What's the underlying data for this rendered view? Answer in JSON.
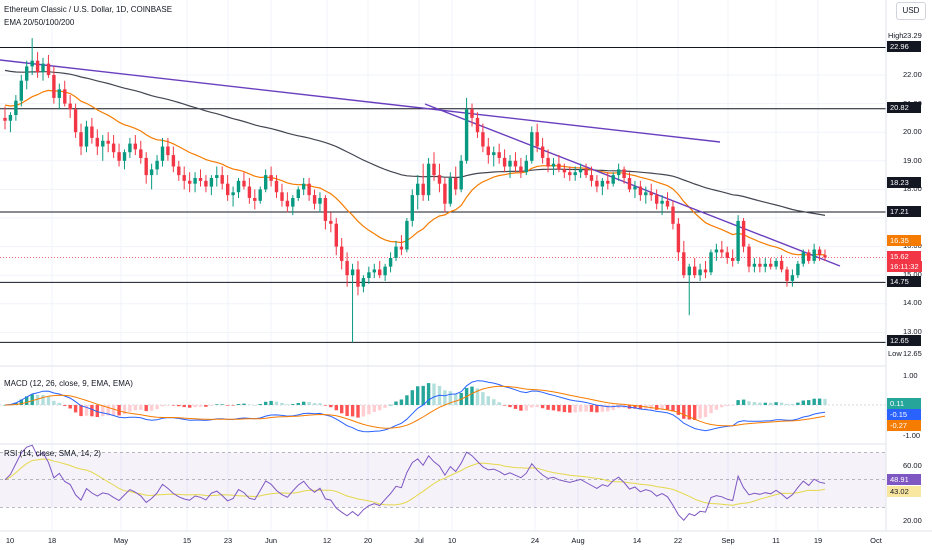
{
  "header": {
    "title": "Ethereum Classic / U.S. Dollar, 1D, COINBASE",
    "ema_label": "EMA 20/50/100/200",
    "currency_button": "USD"
  },
  "main_axis": {
    "ticks": [
      "22.00",
      "21.00",
      "20.00",
      "19.00",
      "18.00",
      "16.00",
      "15.00",
      "14.00",
      "13.00"
    ],
    "tags": {
      "high_label": "High",
      "high_value": "23.29",
      "r1": "22.96",
      "r2": "20.82",
      "ema200": "18.23",
      "r3": "17.21",
      "ema50": "16.35",
      "price": "15.62",
      "countdown": "16:11:32",
      "r4": "14.75",
      "r5": "12.65",
      "low_label": "Low",
      "low_value": "12.65"
    }
  },
  "macd": {
    "label": "MACD (12, 26, close, 9, EMA, EMA)",
    "ticks": [
      "1.00",
      "-1.00"
    ],
    "hist_value": "0.11",
    "macd_value": "-0.15",
    "signal_value": "-0.27"
  },
  "rsi": {
    "label": "RSI (14, close, SMA, 14, 2)",
    "ticks": [
      "60.00",
      "20.00"
    ],
    "rsi_value": "48.91",
    "ma_value": "43.02"
  },
  "x_axis": [
    "10",
    "18",
    "May",
    "15",
    "23",
    "Jun",
    "12",
    "20",
    "Jul",
    "10",
    "24",
    "Aug",
    "14",
    "22",
    "Sep",
    "11",
    "19",
    "Oct"
  ],
  "colors": {
    "up": "#089981",
    "down": "#f23645",
    "ema_orange": "#f57c00",
    "ema_gray": "#434651",
    "trend_purple": "#6a3fbf",
    "macd_blue": "#2962ff",
    "rsi_purple": "#7e57c2",
    "rsi_ma": "#e6d84a"
  },
  "chart_data": {
    "type": "candlestick",
    "series": [
      {
        "name": "candles",
        "ohlc": [
          [
            20.5,
            20.9,
            20.1,
            20.4
          ],
          [
            20.4,
            20.7,
            20.0,
            20.6
          ],
          [
            20.6,
            21.3,
            20.4,
            21.1
          ],
          [
            21.1,
            22.0,
            20.9,
            21.8
          ],
          [
            21.8,
            22.5,
            21.5,
            22.3
          ],
          [
            22.3,
            23.29,
            22.0,
            22.5
          ],
          [
            22.5,
            22.8,
            21.9,
            22.1
          ],
          [
            22.1,
            22.6,
            21.8,
            22.4
          ],
          [
            22.4,
            22.7,
            21.9,
            22.0
          ],
          [
            22.0,
            22.3,
            21.0,
            21.2
          ],
          [
            21.2,
            21.7,
            20.8,
            21.5
          ],
          [
            21.5,
            21.8,
            20.9,
            21.0
          ],
          [
            21.0,
            21.3,
            20.5,
            20.8
          ],
          [
            20.8,
            21.0,
            19.8,
            20.0
          ],
          [
            20.0,
            20.3,
            19.2,
            19.5
          ],
          [
            19.5,
            20.4,
            19.3,
            20.2
          ],
          [
            20.2,
            20.5,
            19.6,
            19.8
          ],
          [
            19.8,
            20.1,
            19.2,
            19.5
          ],
          [
            19.5,
            19.9,
            19.0,
            19.7
          ],
          [
            19.7,
            20.0,
            19.3,
            19.6
          ],
          [
            19.6,
            19.9,
            19.1,
            19.3
          ],
          [
            19.3,
            19.6,
            18.8,
            19.0
          ],
          [
            19.0,
            19.4,
            18.7,
            19.3
          ],
          [
            19.3,
            19.8,
            19.1,
            19.6
          ],
          [
            19.6,
            19.9,
            19.2,
            19.4
          ],
          [
            19.4,
            19.7,
            18.9,
            19.1
          ],
          [
            19.1,
            19.3,
            18.2,
            18.5
          ],
          [
            18.5,
            18.9,
            18.0,
            18.7
          ],
          [
            18.7,
            19.2,
            18.5,
            19.0
          ],
          [
            19.0,
            19.8,
            18.8,
            19.5
          ],
          [
            19.5,
            19.8,
            19.0,
            19.2
          ],
          [
            19.2,
            19.5,
            18.6,
            18.8
          ],
          [
            18.8,
            19.0,
            18.3,
            18.5
          ],
          [
            18.5,
            18.8,
            18.0,
            18.3
          ],
          [
            18.3,
            18.6,
            17.9,
            18.2
          ],
          [
            18.2,
            18.6,
            17.9,
            18.4
          ],
          [
            18.4,
            18.7,
            18.1,
            18.3
          ],
          [
            18.3,
            18.5,
            17.9,
            18.1
          ],
          [
            18.1,
            18.5,
            17.8,
            18.4
          ],
          [
            18.4,
            18.8,
            18.1,
            18.5
          ],
          [
            18.5,
            18.8,
            18.0,
            18.2
          ],
          [
            18.2,
            18.5,
            17.6,
            17.8
          ],
          [
            17.8,
            18.1,
            17.4,
            17.9
          ],
          [
            17.9,
            18.4,
            17.7,
            18.3
          ],
          [
            18.3,
            18.6,
            18.0,
            18.1
          ],
          [
            18.1,
            18.4,
            17.5,
            17.7
          ],
          [
            17.7,
            18.0,
            17.3,
            17.6
          ],
          [
            17.6,
            18.1,
            17.5,
            18.0
          ],
          [
            18.0,
            18.7,
            17.9,
            18.5
          ],
          [
            18.5,
            18.8,
            18.1,
            18.3
          ],
          [
            18.3,
            18.5,
            17.7,
            17.9
          ],
          [
            17.9,
            18.2,
            17.4,
            17.6
          ],
          [
            17.6,
            17.9,
            17.2,
            17.4
          ],
          [
            17.4,
            17.8,
            17.1,
            17.7
          ],
          [
            17.7,
            18.1,
            17.6,
            18.0
          ],
          [
            18.0,
            18.4,
            17.8,
            18.2
          ],
          [
            18.2,
            18.4,
            17.6,
            17.8
          ],
          [
            17.8,
            18.0,
            17.3,
            17.5
          ],
          [
            17.5,
            17.9,
            17.2,
            17.7
          ],
          [
            17.7,
            17.8,
            16.6,
            16.9
          ],
          [
            16.9,
            17.2,
            16.5,
            16.8
          ],
          [
            16.8,
            17.0,
            15.7,
            16.0
          ],
          [
            16.0,
            16.3,
            15.2,
            15.5
          ],
          [
            15.5,
            15.8,
            14.6,
            15.0
          ],
          [
            15.0,
            15.4,
            12.65,
            15.2
          ],
          [
            15.2,
            15.5,
            14.3,
            14.6
          ],
          [
            14.6,
            15.0,
            14.4,
            14.9
          ],
          [
            14.9,
            15.3,
            14.7,
            15.1
          ],
          [
            15.1,
            15.4,
            14.9,
            15.2
          ],
          [
            15.2,
            15.5,
            14.9,
            15.0
          ],
          [
            15.0,
            15.4,
            14.8,
            15.3
          ],
          [
            15.3,
            15.8,
            15.1,
            15.6
          ],
          [
            15.6,
            16.2,
            15.5,
            16.0
          ],
          [
            16.0,
            16.4,
            15.7,
            15.9
          ],
          [
            15.9,
            17.0,
            15.8,
            16.9
          ],
          [
            16.9,
            18.0,
            16.7,
            17.8
          ],
          [
            17.8,
            18.5,
            17.3,
            18.2
          ],
          [
            18.2,
            18.9,
            17.6,
            17.8
          ],
          [
            17.8,
            19.1,
            17.6,
            18.9
          ],
          [
            18.9,
            19.3,
            18.3,
            18.5
          ],
          [
            18.5,
            18.9,
            17.9,
            18.2
          ],
          [
            18.2,
            18.4,
            17.2,
            17.5
          ],
          [
            17.5,
            18.6,
            17.4,
            18.4
          ],
          [
            18.4,
            18.8,
            17.8,
            18.0
          ],
          [
            18.0,
            19.2,
            17.9,
            19.0
          ],
          [
            19.0,
            21.2,
            18.9,
            20.8
          ],
          [
            20.8,
            21.0,
            20.2,
            20.5
          ],
          [
            20.5,
            20.7,
            19.8,
            20.0
          ],
          [
            20.0,
            20.3,
            19.3,
            19.5
          ],
          [
            19.5,
            19.8,
            18.9,
            19.2
          ],
          [
            19.2,
            19.5,
            18.8,
            19.3
          ],
          [
            19.3,
            19.6,
            18.9,
            19.1
          ],
          [
            19.1,
            19.4,
            18.6,
            18.8
          ],
          [
            18.8,
            19.2,
            18.4,
            19.0
          ],
          [
            19.0,
            19.3,
            18.6,
            18.8
          ],
          [
            18.8,
            19.1,
            18.4,
            18.6
          ],
          [
            18.6,
            19.2,
            18.5,
            19.0
          ],
          [
            19.0,
            20.2,
            18.9,
            20.0
          ],
          [
            20.0,
            20.3,
            19.3,
            19.5
          ],
          [
            19.5,
            19.8,
            18.9,
            19.1
          ],
          [
            19.1,
            19.4,
            18.6,
            18.8
          ],
          [
            18.8,
            19.1,
            18.5,
            18.9
          ],
          [
            18.9,
            19.2,
            18.6,
            18.7
          ],
          [
            18.7,
            18.9,
            18.4,
            18.6
          ],
          [
            18.6,
            18.8,
            18.3,
            18.5
          ],
          [
            18.5,
            18.8,
            18.3,
            18.6
          ],
          [
            18.6,
            18.9,
            18.4,
            18.7
          ],
          [
            18.7,
            18.9,
            18.4,
            18.5
          ],
          [
            18.5,
            18.8,
            18.1,
            18.3
          ],
          [
            18.3,
            18.5,
            17.9,
            18.1
          ],
          [
            18.1,
            18.4,
            17.8,
            18.3
          ],
          [
            18.3,
            18.6,
            18.0,
            18.2
          ],
          [
            18.2,
            18.6,
            18.1,
            18.5
          ],
          [
            18.5,
            18.9,
            18.3,
            18.7
          ],
          [
            18.7,
            18.8,
            18.2,
            18.4
          ],
          [
            18.4,
            18.6,
            17.9,
            18.0
          ],
          [
            18.0,
            18.3,
            17.7,
            18.1
          ],
          [
            18.1,
            18.3,
            17.6,
            17.8
          ],
          [
            17.8,
            18.1,
            17.5,
            17.9
          ],
          [
            17.9,
            18.2,
            17.6,
            17.8
          ],
          [
            17.8,
            18.0,
            17.3,
            17.5
          ],
          [
            17.5,
            17.8,
            17.1,
            17.6
          ],
          [
            17.6,
            17.9,
            17.3,
            17.4
          ],
          [
            17.4,
            17.6,
            16.6,
            16.8
          ],
          [
            16.8,
            17.0,
            15.5,
            15.8
          ],
          [
            15.8,
            16.2,
            14.9,
            15.0
          ],
          [
            15.0,
            15.4,
            13.6,
            15.3
          ],
          [
            15.3,
            15.6,
            14.9,
            15.0
          ],
          [
            15.0,
            15.4,
            14.8,
            15.2
          ],
          [
            15.2,
            15.5,
            14.9,
            15.1
          ],
          [
            15.1,
            15.9,
            15.0,
            15.8
          ],
          [
            15.8,
            16.1,
            15.5,
            15.9
          ],
          [
            15.9,
            16.2,
            15.6,
            15.8
          ],
          [
            15.8,
            16.0,
            15.4,
            15.6
          ],
          [
            15.6,
            15.9,
            15.3,
            15.5
          ],
          [
            15.5,
            17.1,
            15.4,
            16.9
          ],
          [
            16.9,
            17.0,
            15.8,
            16.0
          ],
          [
            16.0,
            16.1,
            15.1,
            15.3
          ],
          [
            15.3,
            15.6,
            15.1,
            15.4
          ],
          [
            15.4,
            15.6,
            15.1,
            15.3
          ],
          [
            15.3,
            15.6,
            15.1,
            15.4
          ],
          [
            15.4,
            15.6,
            15.2,
            15.3
          ],
          [
            15.3,
            15.6,
            15.2,
            15.5
          ],
          [
            15.5,
            15.7,
            15.1,
            15.2
          ],
          [
            15.2,
            15.3,
            14.6,
            14.8
          ],
          [
            14.8,
            15.2,
            14.6,
            15.0
          ],
          [
            15.0,
            15.5,
            14.9,
            15.4
          ],
          [
            15.4,
            15.9,
            15.3,
            15.8
          ],
          [
            15.8,
            15.9,
            15.4,
            15.5
          ],
          [
            15.5,
            16.1,
            15.4,
            15.9
          ],
          [
            15.9,
            16.0,
            15.5,
            15.7
          ],
          [
            15.7,
            15.9,
            15.5,
            15.62
          ]
        ]
      }
    ],
    "ylim": [
      12.3,
      23.6
    ]
  }
}
